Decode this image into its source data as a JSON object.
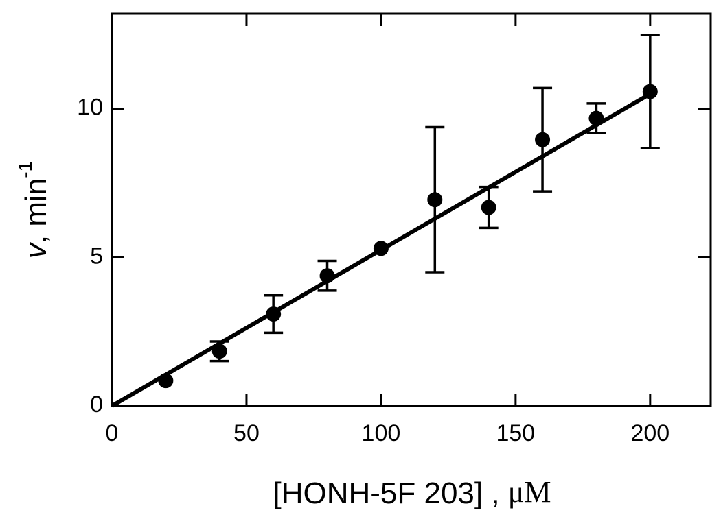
{
  "chart_data": {
    "type": "scatter",
    "xlabel": {
      "text": "[HONH-5F 203] , ",
      "unit": "μM"
    },
    "ylabel": {
      "var": "v",
      "unit": ", min",
      "exp": "-1"
    },
    "xlim": [
      0,
      222.5
    ],
    "ylim": [
      0,
      13.2
    ],
    "xticks": [
      0,
      50,
      100,
      150,
      200
    ],
    "yticks": [
      0,
      5,
      10
    ],
    "color": "#000000",
    "series": [
      {
        "x": [
          20,
          40,
          60,
          80,
          100,
          120,
          140,
          160,
          180,
          200
        ],
        "values": [
          0.85,
          1.84,
          3.09,
          4.38,
          5.3,
          6.94,
          6.68,
          8.96,
          9.68,
          10.58
        ],
        "errors": [
          0,
          0.33,
          0.63,
          0.5,
          0,
          2.44,
          0.69,
          1.74,
          0.5,
          1.9
        ]
      }
    ],
    "fit": {
      "x": [
        0,
        200
      ],
      "values": [
        0,
        10.5
      ]
    }
  }
}
